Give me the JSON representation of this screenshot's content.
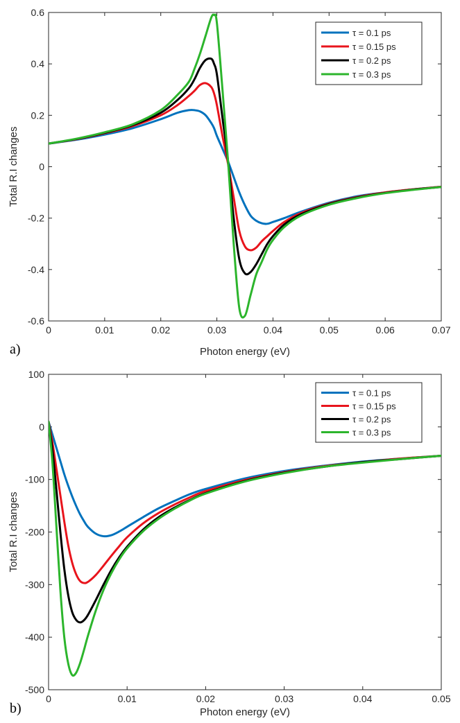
{
  "chart_data": [
    {
      "type": "line",
      "panel_label": "a)",
      "xlabel": "Photon energy (eV)",
      "ylabel": "Total R.I changes",
      "xlim": [
        0,
        0.07
      ],
      "ylim": [
        -0.6,
        0.6
      ],
      "xticks": [
        0,
        0.01,
        0.02,
        0.03,
        0.04,
        0.05,
        0.06,
        0.07
      ],
      "xtick_labels": [
        "0",
        "0.01",
        "0.02",
        "0.03",
        "0.04",
        "0.05",
        "0.06",
        "0.07"
      ],
      "yticks": [
        -0.6,
        -0.4,
        -0.2,
        0,
        0.2,
        0.4,
        0.6
      ],
      "ytick_labels": [
        "-0.6",
        "-0.4",
        "-0.2",
        "0",
        "0.2",
        "0.4",
        "0.6"
      ],
      "legend_position": "top-right",
      "x": [
        0,
        0.005,
        0.01,
        0.015,
        0.02,
        0.023,
        0.025,
        0.026,
        0.027,
        0.028,
        0.029,
        0.0295,
        0.03,
        0.031,
        0.032,
        0.033,
        0.034,
        0.035,
        0.036,
        0.037,
        0.038,
        0.039,
        0.04,
        0.042,
        0.045,
        0.05,
        0.055,
        0.06,
        0.065,
        0.07
      ],
      "series": [
        {
          "name": "τ = 0.1 ps",
          "color": "#0072BD",
          "values": [
            0.09,
            0.105,
            0.125,
            0.15,
            0.185,
            0.21,
            0.22,
            0.22,
            0.215,
            0.2,
            0.17,
            0.15,
            0.12,
            0.07,
            0.02,
            -0.04,
            -0.1,
            -0.15,
            -0.19,
            -0.21,
            -0.22,
            -0.222,
            -0.215,
            -0.2,
            -0.175,
            -0.14,
            -0.115,
            -0.1,
            -0.088,
            -0.078
          ]
        },
        {
          "name": "τ = 0.15 ps",
          "color": "#E8141C",
          "values": [
            0.09,
            0.107,
            0.13,
            0.158,
            0.2,
            0.24,
            0.275,
            0.295,
            0.318,
            0.325,
            0.31,
            0.285,
            0.24,
            0.12,
            0.01,
            -0.12,
            -0.25,
            -0.31,
            -0.325,
            -0.315,
            -0.29,
            -0.27,
            -0.25,
            -0.215,
            -0.18,
            -0.143,
            -0.118,
            -0.1,
            -0.088,
            -0.078
          ]
        },
        {
          "name": "τ = 0.2 ps",
          "color": "#000000",
          "values": [
            0.09,
            0.108,
            0.132,
            0.162,
            0.21,
            0.26,
            0.305,
            0.34,
            0.385,
            0.415,
            0.42,
            0.4,
            0.36,
            0.19,
            0.02,
            -0.2,
            -0.36,
            -0.415,
            -0.41,
            -0.38,
            -0.34,
            -0.3,
            -0.27,
            -0.225,
            -0.185,
            -0.145,
            -0.12,
            -0.102,
            -0.089,
            -0.079
          ]
        },
        {
          "name": "τ = 0.3 ps",
          "color": "#2CB52C",
          "values": [
            0.09,
            0.109,
            0.134,
            0.165,
            0.22,
            0.28,
            0.33,
            0.38,
            0.44,
            0.51,
            0.58,
            0.59,
            0.56,
            0.3,
            0.02,
            -0.3,
            -0.55,
            -0.58,
            -0.5,
            -0.42,
            -0.37,
            -0.32,
            -0.285,
            -0.235,
            -0.19,
            -0.148,
            -0.122,
            -0.103,
            -0.09,
            -0.079
          ]
        }
      ]
    },
    {
      "type": "line",
      "panel_label": "b)",
      "xlabel": "Photon energy (eV)",
      "ylabel": "Total R.I changes",
      "xlim": [
        0,
        0.05
      ],
      "ylim": [
        -500,
        100
      ],
      "xticks": [
        0,
        0.01,
        0.02,
        0.03,
        0.04,
        0.05
      ],
      "xtick_labels": [
        "0",
        "0.01",
        "0.02",
        "0.03",
        "0.04",
        "0.05"
      ],
      "yticks": [
        -500,
        -400,
        -300,
        -200,
        -100,
        0,
        100
      ],
      "ytick_labels": [
        "-500",
        "-400",
        "-300",
        "-200",
        "-100",
        "0",
        "100"
      ],
      "legend_position": "top-right",
      "x": [
        0,
        0.0005,
        0.001,
        0.0015,
        0.002,
        0.0025,
        0.003,
        0.0035,
        0.004,
        0.0045,
        0.005,
        0.006,
        0.007,
        0.008,
        0.009,
        0.01,
        0.012,
        0.014,
        0.016,
        0.018,
        0.02,
        0.025,
        0.03,
        0.035,
        0.04,
        0.045,
        0.05
      ],
      "series": [
        {
          "name": "τ = 0.1 ps",
          "color": "#0072BD",
          "values": [
            10,
            -15,
            -40,
            -65,
            -90,
            -112,
            -132,
            -150,
            -166,
            -179,
            -190,
            -203,
            -208,
            -206,
            -199,
            -190,
            -172,
            -155,
            -141,
            -128,
            -118,
            -98,
            -84,
            -74,
            -66,
            -60,
            -55
          ]
        },
        {
          "name": "τ = 0.15 ps",
          "color": "#E8141C",
          "values": [
            10,
            -30,
            -80,
            -130,
            -180,
            -225,
            -258,
            -280,
            -293,
            -297,
            -295,
            -282,
            -264,
            -245,
            -227,
            -210,
            -184,
            -164,
            -148,
            -134,
            -122,
            -101,
            -86,
            -75,
            -67,
            -60,
            -55
          ]
        },
        {
          "name": "τ = 0.2 ps",
          "color": "#000000",
          "values": [
            10,
            -45,
            -120,
            -200,
            -270,
            -320,
            -352,
            -367,
            -372,
            -368,
            -358,
            -330,
            -300,
            -272,
            -248,
            -228,
            -196,
            -172,
            -154,
            -139,
            -126,
            -103,
            -87,
            -76,
            -67,
            -61,
            -55
          ]
        },
        {
          "name": "τ = 0.3 ps",
          "color": "#2CB52C",
          "values": [
            10,
            -70,
            -190,
            -310,
            -400,
            -450,
            -472,
            -468,
            -450,
            -425,
            -398,
            -350,
            -310,
            -278,
            -252,
            -231,
            -199,
            -175,
            -156,
            -140,
            -127,
            -104,
            -88,
            -76,
            -68,
            -61,
            -55
          ]
        }
      ]
    }
  ]
}
